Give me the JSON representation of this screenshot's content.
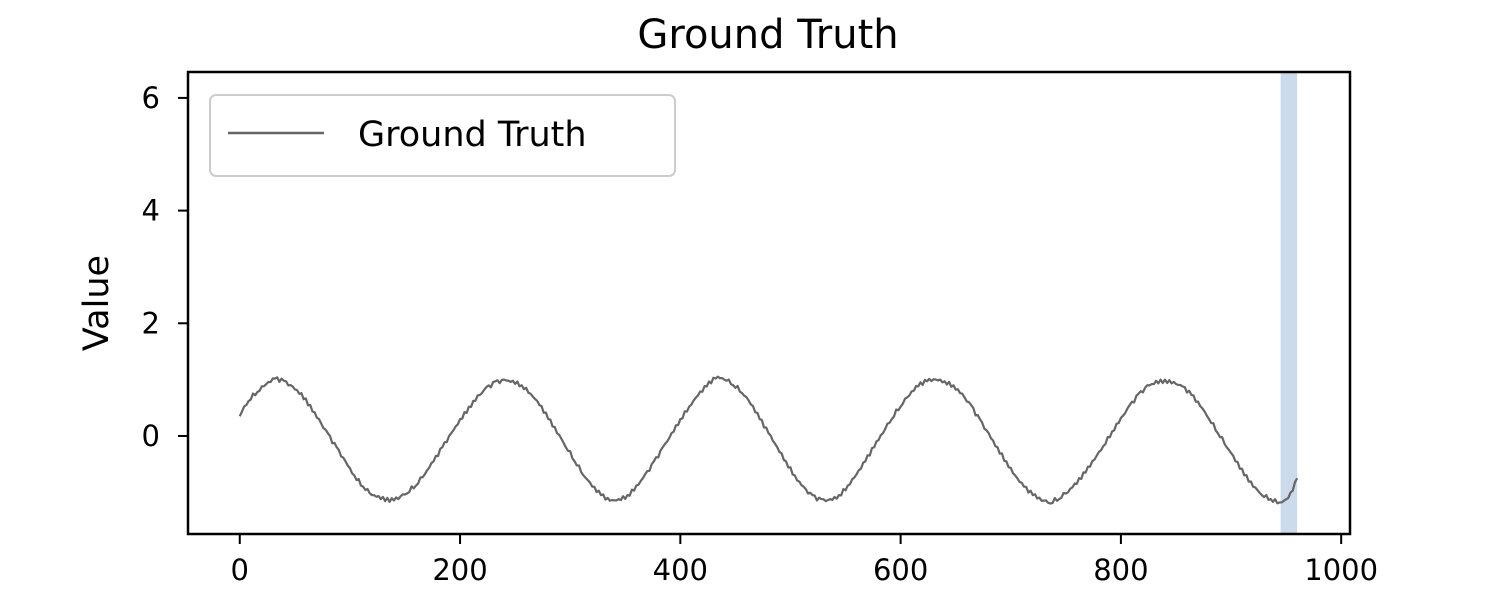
{
  "chart_data": {
    "type": "line",
    "title": "Ground Truth",
    "xlabel": "",
    "ylabel": "Value",
    "xlim": [
      -47,
      1008
    ],
    "ylim": [
      -1.74,
      6.46
    ],
    "xticks": [
      0,
      200,
      400,
      600,
      800,
      1000
    ],
    "yticks": [
      0,
      2,
      4,
      6
    ],
    "grid": false,
    "legend_position": "upper-left",
    "highlight_span": {
      "x0": 945,
      "x1": 960,
      "color": "#b9cfe6"
    },
    "series": [
      {
        "name": "Ground Truth",
        "color": "#666666",
        "period": 200,
        "x_start": 0,
        "x_end": 960,
        "points": [
          [
            0,
            0.35
          ],
          [
            8,
            0.62
          ],
          [
            16,
            0.78
          ],
          [
            24,
            0.92
          ],
          [
            32,
            1.02
          ],
          [
            40,
            0.98
          ],
          [
            48,
            0.88
          ],
          [
            56,
            0.76
          ],
          [
            64,
            0.55
          ],
          [
            72,
            0.3
          ],
          [
            80,
            0.05
          ],
          [
            88,
            -0.2
          ],
          [
            96,
            -0.45
          ],
          [
            104,
            -0.7
          ],
          [
            112,
            -0.9
          ],
          [
            120,
            -1.05
          ],
          [
            128,
            -1.12
          ],
          [
            136,
            -1.17
          ],
          [
            144,
            -1.12
          ],
          [
            152,
            -1.02
          ],
          [
            160,
            -0.88
          ],
          [
            168,
            -0.68
          ],
          [
            176,
            -0.45
          ],
          [
            184,
            -0.2
          ],
          [
            192,
            0.05
          ],
          [
            200,
            0.3
          ],
          [
            208,
            0.52
          ],
          [
            216,
            0.72
          ],
          [
            224,
            0.87
          ],
          [
            232,
            0.97
          ],
          [
            240,
            1.0
          ],
          [
            248,
            0.98
          ],
          [
            256,
            0.9
          ],
          [
            264,
            0.75
          ],
          [
            272,
            0.55
          ],
          [
            280,
            0.3
          ],
          [
            288,
            0.05
          ],
          [
            296,
            -0.2
          ],
          [
            304,
            -0.45
          ],
          [
            312,
            -0.7
          ],
          [
            320,
            -0.9
          ],
          [
            328,
            -1.05
          ],
          [
            336,
            -1.15
          ],
          [
            344,
            -1.12
          ],
          [
            352,
            -1.05
          ],
          [
            360,
            -0.88
          ],
          [
            368,
            -0.68
          ],
          [
            376,
            -0.45
          ],
          [
            384,
            -0.2
          ],
          [
            392,
            0.05
          ],
          [
            400,
            0.3
          ],
          [
            408,
            0.52
          ],
          [
            416,
            0.72
          ],
          [
            424,
            0.88
          ],
          [
            432,
            1.02
          ],
          [
            440,
            1.0
          ],
          [
            448,
            0.9
          ],
          [
            456,
            0.76
          ],
          [
            464,
            0.56
          ],
          [
            472,
            0.3
          ],
          [
            480,
            0.05
          ],
          [
            488,
            -0.2
          ],
          [
            496,
            -0.45
          ],
          [
            504,
            -0.7
          ],
          [
            512,
            -0.9
          ],
          [
            520,
            -1.05
          ],
          [
            528,
            -1.12
          ],
          [
            536,
            -1.12
          ],
          [
            544,
            -1.05
          ],
          [
            552,
            -0.88
          ],
          [
            560,
            -0.68
          ],
          [
            568,
            -0.45
          ],
          [
            576,
            -0.2
          ],
          [
            584,
            0.05
          ],
          [
            592,
            0.3
          ],
          [
            600,
            0.52
          ],
          [
            608,
            0.72
          ],
          [
            616,
            0.88
          ],
          [
            624,
            0.97
          ],
          [
            632,
            1.0
          ],
          [
            640,
            0.97
          ],
          [
            648,
            0.9
          ],
          [
            656,
            0.75
          ],
          [
            664,
            0.55
          ],
          [
            672,
            0.3
          ],
          [
            680,
            0.05
          ],
          [
            688,
            -0.2
          ],
          [
            696,
            -0.45
          ],
          [
            704,
            -0.7
          ],
          [
            712,
            -0.9
          ],
          [
            720,
            -1.05
          ],
          [
            728,
            -1.15
          ],
          [
            736,
            -1.2
          ],
          [
            744,
            -1.12
          ],
          [
            752,
            -1.0
          ],
          [
            760,
            -0.85
          ],
          [
            768,
            -0.65
          ],
          [
            776,
            -0.42
          ],
          [
            784,
            -0.18
          ],
          [
            792,
            0.08
          ],
          [
            800,
            0.32
          ],
          [
            808,
            0.55
          ],
          [
            816,
            0.75
          ],
          [
            824,
            0.9
          ],
          [
            832,
            0.98
          ],
          [
            840,
            1.0
          ],
          [
            848,
            0.96
          ],
          [
            856,
            0.88
          ],
          [
            864,
            0.73
          ],
          [
            872,
            0.53
          ],
          [
            880,
            0.3
          ],
          [
            888,
            0.05
          ],
          [
            896,
            -0.2
          ],
          [
            904,
            -0.45
          ],
          [
            912,
            -0.7
          ],
          [
            920,
            -0.9
          ],
          [
            928,
            -1.05
          ],
          [
            936,
            -1.12
          ],
          [
            944,
            -1.18
          ],
          [
            952,
            -1.1
          ],
          [
            960,
            -0.75
          ]
        ]
      }
    ]
  }
}
